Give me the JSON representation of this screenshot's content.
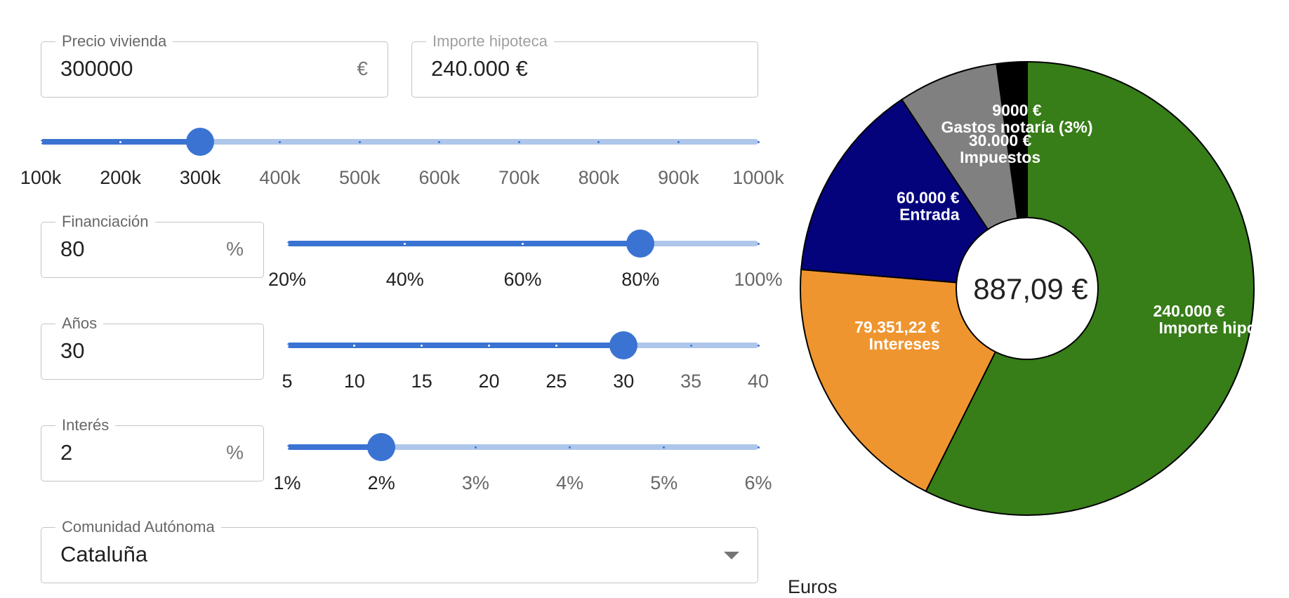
{
  "form": {
    "precio": {
      "label": "Precio vivienda",
      "value": "300000",
      "adornment": "€"
    },
    "importe": {
      "label": "Importe hipoteca",
      "value": "240.000 €"
    },
    "financiacion": {
      "label": "Financiación",
      "value": "80",
      "adornment": "%"
    },
    "anos": {
      "label": "Años",
      "value": "30"
    },
    "interes": {
      "label": "Interés",
      "value": "2",
      "adornment": "%"
    },
    "comunidad": {
      "label": "Comunidad Autónoma",
      "value": "Cataluña"
    }
  },
  "sliders": {
    "precio": {
      "value": 300,
      "min": 100,
      "max": 1000,
      "marks": [
        "100k",
        "200k",
        "300k",
        "400k",
        "500k",
        "600k",
        "700k",
        "800k",
        "900k",
        "1000k"
      ]
    },
    "financiacion": {
      "value": 80,
      "min": 20,
      "max": 100,
      "marks": [
        "20%",
        "40%",
        "60%",
        "80%",
        "100%"
      ]
    },
    "anos": {
      "value": 30,
      "min": 5,
      "max": 40,
      "marks": [
        "5",
        "10",
        "15",
        "20",
        "25",
        "30",
        "35",
        "40"
      ]
    },
    "interes": {
      "value": 2,
      "min": 1,
      "max": 6,
      "marks": [
        "1%",
        "2%",
        "3%",
        "4%",
        "5%",
        "6%"
      ]
    }
  },
  "colors": {
    "accent": "#3b73d3",
    "rail": "#aec6ea"
  },
  "chart_data": {
    "type": "pie",
    "center_label": "887,09 €",
    "slices": [
      {
        "value": 240000,
        "value_label": "240.000 €",
        "name": "Importe hipoteca",
        "color": "#377d18"
      },
      {
        "value": 79351.22,
        "value_label": "79.351,22 €",
        "name": "Intereses",
        "color": "#ef9530"
      },
      {
        "value": 60000,
        "value_label": "60.000 €",
        "name": "Entrada",
        "color": "#04037b"
      },
      {
        "value": 30000,
        "value_label": "30.000 €",
        "name": "Impuestos",
        "color": "#808080"
      },
      {
        "value": 9000,
        "value_label": "9000 €",
        "name": "Gastos notaría (3%)",
        "color": "#000000"
      }
    ]
  },
  "footer": {
    "text": "Euros"
  }
}
